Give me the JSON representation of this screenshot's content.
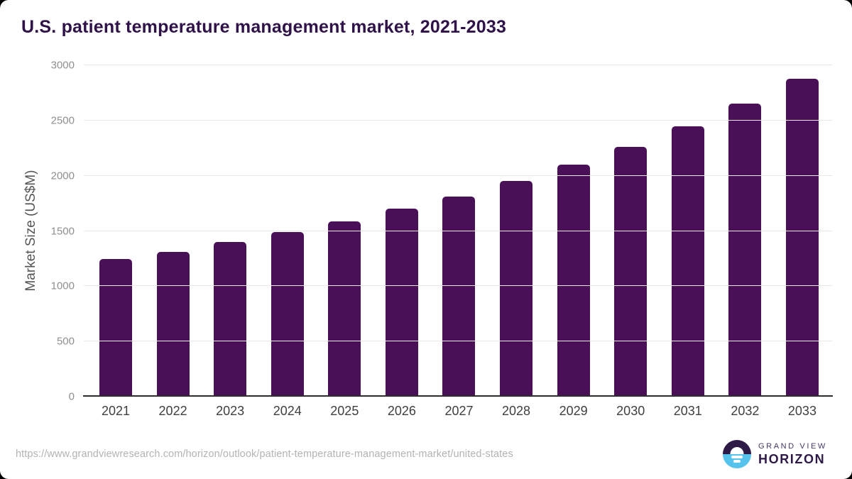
{
  "chart_data": {
    "type": "bar",
    "title": "U.S. patient temperature management market, 2021-2033",
    "ylabel": "Market Size (US$M)",
    "xlabel": "",
    "categories": [
      "2021",
      "2022",
      "2023",
      "2024",
      "2025",
      "2026",
      "2027",
      "2028",
      "2029",
      "2030",
      "2031",
      "2032",
      "2033"
    ],
    "values": [
      1245,
      1310,
      1398,
      1488,
      1587,
      1700,
      1812,
      1956,
      2102,
      2262,
      2450,
      2652,
      2880
    ],
    "ylim": [
      0,
      3000
    ],
    "ytick_step": 500,
    "yticks": [
      0,
      500,
      1000,
      1500,
      2000,
      2500,
      3000
    ],
    "grid": true,
    "legend": false,
    "bar_color": "#4A1057"
  },
  "footer": {
    "url": "https://www.grandviewresearch.com/horizon/outlook/patient-temperature-management-market/united-states",
    "logo": {
      "line1": "GRAND VIEW",
      "line2": "HORIZON"
    }
  },
  "colors": {
    "bar": "#4A1057",
    "title": "#2F1248",
    "grid": "#E8E8E8",
    "axis": "#2D2D2D",
    "ytick_label": "#8F8F8F",
    "xtick_label": "#3F3F3F",
    "ylabel": "#555555",
    "url": "#B3B3B3",
    "logo_dark": "#2E1A47",
    "logo_blue": "#56C3EC"
  }
}
